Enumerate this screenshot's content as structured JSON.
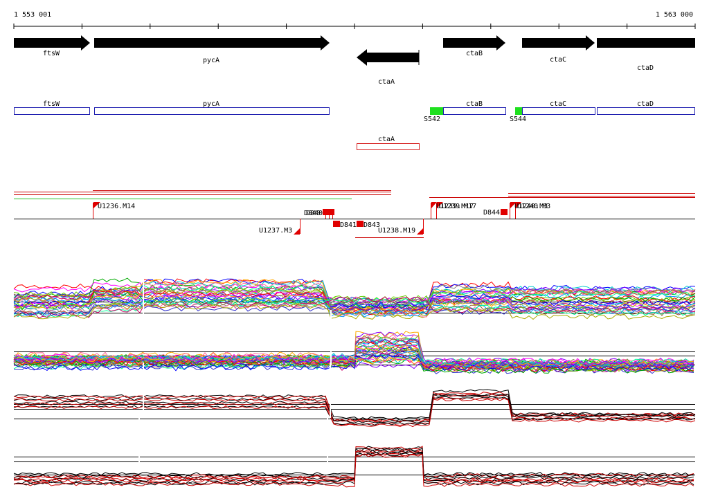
{
  "coords": {
    "start": "1 553 001",
    "end": "1 563 000"
  },
  "arrow_genes": [
    {
      "id": "ftsW",
      "label": "ftsW",
      "strand": "+"
    },
    {
      "id": "pycA",
      "label": "pycA",
      "strand": "+"
    },
    {
      "id": "ctaA",
      "label": "ctaA",
      "strand": "-"
    },
    {
      "id": "ctaB",
      "label": "ctaB",
      "strand": "+"
    },
    {
      "id": "ctaC",
      "label": "ctaC",
      "strand": "+"
    },
    {
      "id": "ctaD",
      "label": "ctaD",
      "strand": "+"
    }
  ],
  "box_genes": [
    {
      "id": "ftsW",
      "label": "ftsW",
      "color": "#1f1fb0"
    },
    {
      "id": "pycA",
      "label": "pycA",
      "color": "#1f1fb0"
    },
    {
      "id": "ctaB",
      "label": "ctaB",
      "color": "#1f1fb0"
    },
    {
      "id": "ctaC",
      "label": "ctaC",
      "color": "#1f1fb0"
    },
    {
      "id": "ctaD",
      "label": "ctaD",
      "color": "#1f1fb0"
    },
    {
      "id": "ctaA",
      "label": "ctaA",
      "color": "#d62020"
    }
  ],
  "sigma_sites": [
    {
      "label": "S542",
      "color": "#1fe01f"
    },
    {
      "label": "S544",
      "color": "#1fe01f"
    }
  ],
  "features": {
    "up": [
      "U1236.M14",
      "U1237.M3",
      "U1238.M19"
    ],
    "down": [
      "D841",
      "D843",
      "D844"
    ],
    "overlapping": [
      "D840",
      "U1239.M17",
      "U1240.M3"
    ]
  },
  "track_colors": {
    "feature": "#e00000",
    "red_line": "#cc0000",
    "green_line": "#22bb22",
    "axis": "#000000"
  }
}
